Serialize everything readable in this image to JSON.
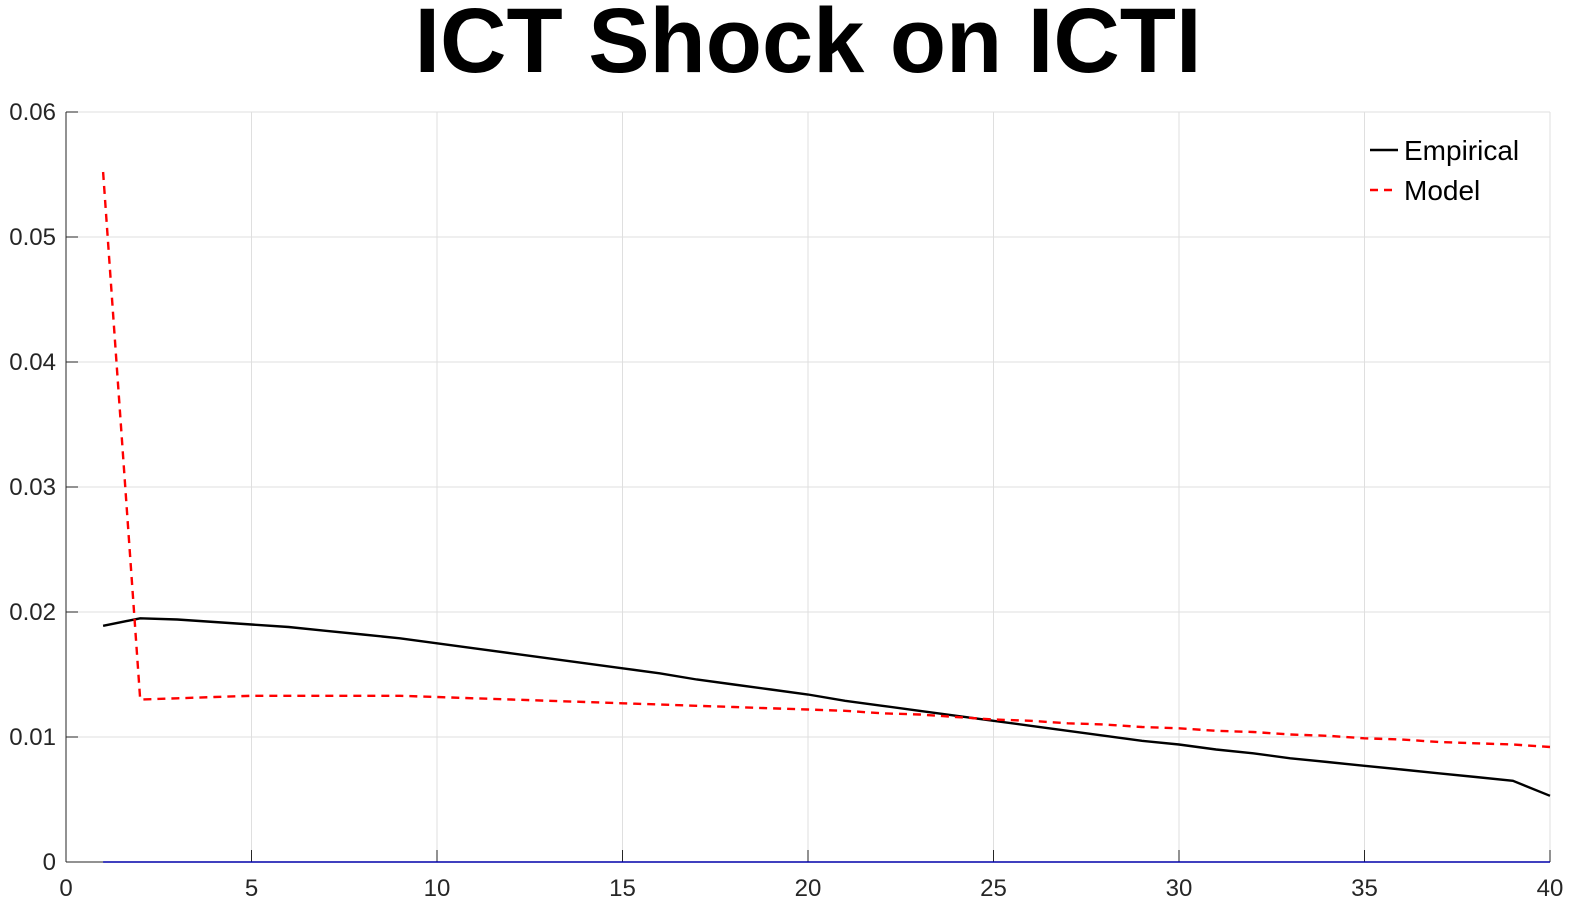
{
  "chart_data": {
    "type": "line",
    "title": "ICT Shock on ICTI",
    "xlabel": "",
    "ylabel": "",
    "xlim": [
      0,
      40
    ],
    "ylim": [
      0,
      0.06
    ],
    "xticks": [
      0,
      5,
      10,
      15,
      20,
      25,
      30,
      35,
      40
    ],
    "yticks": [
      0,
      0.01,
      0.02,
      0.03,
      0.04,
      0.05,
      0.06
    ],
    "xtick_labels": [
      "0",
      "5",
      "10",
      "15",
      "20",
      "25",
      "30",
      "35",
      "40"
    ],
    "ytick_labels": [
      "0",
      "0.01",
      "0.02",
      "0.03",
      "0.04",
      "0.05",
      "0.06"
    ],
    "grid": true,
    "legend_position": "top-right",
    "x": [
      1,
      2,
      3,
      4,
      5,
      6,
      7,
      8,
      9,
      10,
      11,
      12,
      13,
      14,
      15,
      16,
      17,
      18,
      19,
      20,
      21,
      22,
      23,
      24,
      25,
      26,
      27,
      28,
      29,
      30,
      31,
      32,
      33,
      34,
      35,
      36,
      37,
      38,
      39,
      40
    ],
    "series": [
      {
        "name": "Empirical",
        "color": "#000000",
        "style": "solid",
        "values": [
          0.0189,
          0.0195,
          0.0194,
          0.0192,
          0.019,
          0.0188,
          0.0185,
          0.0182,
          0.0179,
          0.0175,
          0.0171,
          0.0167,
          0.0163,
          0.0159,
          0.0155,
          0.0151,
          0.0146,
          0.0142,
          0.0138,
          0.0134,
          0.0129,
          0.0125,
          0.0121,
          0.0117,
          0.0113,
          0.0109,
          0.0105,
          0.0101,
          0.0097,
          0.0094,
          0.009,
          0.0087,
          0.0083,
          0.008,
          0.0077,
          0.0074,
          0.0071,
          0.0068,
          0.0065,
          0.0053
        ]
      },
      {
        "name": "Model",
        "color": "#ff0000",
        "style": "dashed",
        "values": [
          0.0552,
          0.013,
          0.0131,
          0.0132,
          0.0133,
          0.0133,
          0.0133,
          0.0133,
          0.0133,
          0.0132,
          0.0131,
          0.013,
          0.0129,
          0.0128,
          0.0127,
          0.0126,
          0.0125,
          0.0124,
          0.0123,
          0.0122,
          0.0121,
          0.0119,
          0.0118,
          0.0116,
          0.0114,
          0.0113,
          0.0111,
          0.011,
          0.0108,
          0.0107,
          0.0105,
          0.0104,
          0.0102,
          0.0101,
          0.0099,
          0.0098,
          0.0096,
          0.0095,
          0.0094,
          0.0092
        ]
      },
      {
        "name": "",
        "color": "#0000aa",
        "style": "solid",
        "values": [
          0,
          0,
          0,
          0,
          0,
          0,
          0,
          0,
          0,
          0,
          0,
          0,
          0,
          0,
          0,
          0,
          0,
          0,
          0,
          0,
          0,
          0,
          0,
          0,
          0,
          0,
          0,
          0,
          0,
          0,
          0,
          0,
          0,
          0,
          0,
          0,
          0,
          0,
          0,
          0
        ]
      }
    ]
  }
}
